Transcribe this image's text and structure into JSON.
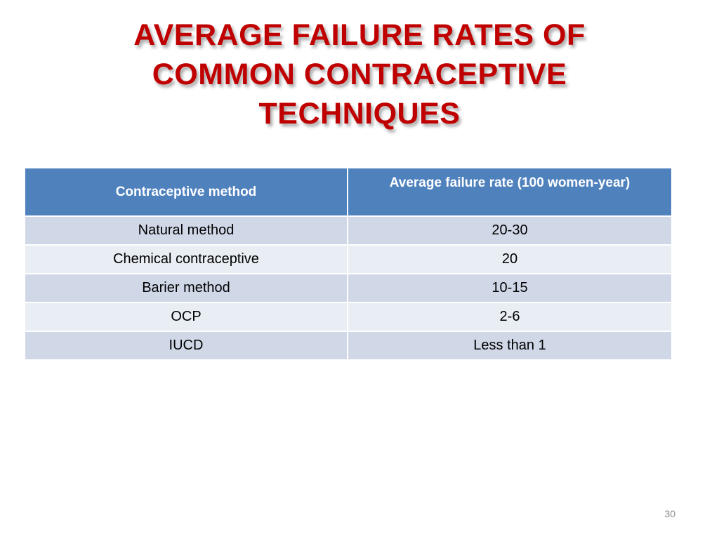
{
  "slide": {
    "title_lines": [
      "AVERAGE FAILURE RATES OF",
      "COMMON CONTRACEPTIVE",
      "TECHNIQUES"
    ],
    "page_number": "30",
    "colors": {
      "title": "#c00000",
      "header_bg": "#4f81bd",
      "row_odd": "#d0d8e8",
      "row_even": "#e9edf4"
    }
  },
  "table": {
    "headers": [
      "Contraceptive method",
      "Average failure rate (100 women-year)"
    ],
    "rows": [
      [
        "Natural method",
        "20-30"
      ],
      [
        "Chemical contraceptive",
        "20"
      ],
      [
        "Barier method",
        "10-15"
      ],
      [
        "OCP",
        "2-6"
      ],
      [
        "IUCD",
        "Less than 1"
      ]
    ]
  }
}
